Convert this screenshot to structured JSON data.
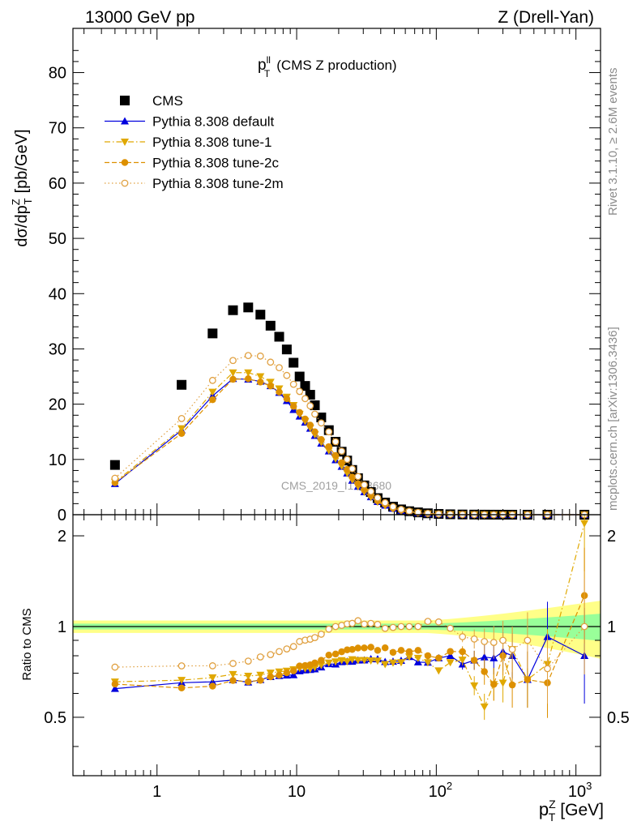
{
  "header": {
    "left": "13000 GeV pp",
    "right": "Z (Drell-Yan)"
  },
  "side_labels": {
    "rivet": "Rivet 3.1.10, ≥ 2.6M events",
    "mcplots": "mcplots.cern.ch [arXiv:1306.3436]"
  },
  "watermark": "CMS_2019_I1753680",
  "chart_data": {
    "type": "scatter",
    "title_main": "p",
    "title_sup": "ll",
    "title_sub": "T",
    "title_rest": "(CMS Z production)",
    "ylabel": {
      "main": "dσ/dp",
      "sup": "Z",
      "sub": "T",
      "unit": "[pb/GeV]"
    },
    "ratio_ylabel": "Ratio to CMS",
    "xlabel": {
      "main": "p",
      "sup": "Z",
      "sub": "T",
      "unit": "[GeV]"
    },
    "x_scale": "log",
    "xlim": [
      0.25,
      1500
    ],
    "ylim": [
      0,
      88
    ],
    "ratio_ylim": [
      0.32,
      2.35
    ],
    "ratio_scale": "log",
    "x_tick_labels": [
      {
        "v": 1,
        "base": "1",
        "exp": ""
      },
      {
        "v": 10,
        "base": "10",
        "exp": ""
      },
      {
        "v": 100,
        "base": "10",
        "exp": "2"
      },
      {
        "v": 1000,
        "base": "10",
        "exp": "3"
      }
    ],
    "y_ticks": [
      0,
      10,
      20,
      30,
      40,
      50,
      60,
      70,
      80
    ],
    "ratio_ticks": [
      {
        "v": 0.5,
        "label": "0.5"
      },
      {
        "v": 1,
        "label": "1"
      },
      {
        "v": 2,
        "label": "2"
      }
    ],
    "legend_position": "top-left",
    "x": [
      0.5,
      1.5,
      2.5,
      3.5,
      4.5,
      5.5,
      6.5,
      7.5,
      8.5,
      9.5,
      10.5,
      11.5,
      12.5,
      13.5,
      15,
      17,
      19,
      21,
      23,
      25,
      27.5,
      30.5,
      34,
      38,
      43,
      49,
      56,
      64,
      74,
      87,
      104,
      126,
      154,
      187,
      221,
      258,
      300,
      350,
      450,
      625,
      1150
    ],
    "series": [
      {
        "name": "CMS",
        "marker": "square-filled",
        "color": "#000000",
        "line": "none",
        "values": [
          9.0,
          23.5,
          32.8,
          37.0,
          37.5,
          36.2,
          34.2,
          32.2,
          29.9,
          27.5,
          25.0,
          23.3,
          21.7,
          19.8,
          17.6,
          15.3,
          13.2,
          11.4,
          9.8,
          8.1,
          6.6,
          5.3,
          4.1,
          3.0,
          2.2,
          1.45,
          0.96,
          0.63,
          0.42,
          0.25,
          0.14,
          0.075,
          0.04,
          0.022,
          0.012,
          0.007,
          0.004,
          0.0025,
          0.0012,
          0.0004,
          6e-05
        ]
      },
      {
        "name": "Pythia 8.308 default",
        "marker": "triangle-up-filled",
        "color": "#0000dd",
        "line": "solid",
        "values": [
          5.6,
          15.3,
          21.5,
          24.6,
          24.5,
          24.1,
          23.3,
          22.1,
          20.6,
          19.0,
          17.8,
          16.7,
          15.6,
          14.3,
          12.9,
          11.5,
          9.9,
          8.7,
          7.5,
          6.2,
          5.1,
          4.1,
          3.2,
          2.34,
          1.68,
          1.11,
          0.74,
          0.5,
          0.32,
          0.19,
          0.11,
          0.06,
          0.03,
          0.017,
          0.0095,
          0.0055,
          0.0033,
          0.002,
          0.0008,
          0.00037,
          4.8e-05
        ]
      },
      {
        "name": "Pythia 8.308 tune-1",
        "marker": "triangle-down-filled",
        "color": "#e0a800",
        "line": "dashdot",
        "values": [
          5.9,
          15.6,
          22.2,
          25.7,
          25.7,
          25.0,
          24.0,
          22.8,
          21.3,
          19.8,
          18.2,
          16.9,
          15.7,
          14.5,
          13.1,
          11.6,
          10.1,
          8.8,
          7.5,
          6.3,
          5.1,
          4.1,
          3.16,
          2.31,
          1.65,
          1.1,
          0.73,
          0.5,
          0.33,
          0.19,
          0.1,
          0.057,
          0.031,
          0.014,
          0.0065,
          0.0045,
          0.0026,
          0.0021,
          0.0008,
          0.0003,
          0.000132
        ]
      },
      {
        "name": "Pythia 8.308 tune-2c",
        "marker": "circle-filled",
        "color": "#dd9000",
        "line": "dashed",
        "values": [
          5.8,
          14.7,
          20.8,
          24.5,
          24.6,
          24.0,
          23.3,
          22.2,
          21.0,
          19.6,
          18.5,
          17.3,
          16.2,
          15.0,
          13.6,
          12.3,
          10.7,
          9.4,
          8.2,
          6.8,
          5.6,
          4.5,
          3.5,
          2.5,
          1.87,
          1.19,
          0.8,
          0.52,
          0.35,
          0.2,
          0.11,
          0.062,
          0.033,
          0.017,
          0.0085,
          0.0045,
          0.0032,
          0.0016,
          0.0008,
          0.00026,
          7.6e-05
        ]
      },
      {
        "name": "Pythia 8.308 tune-2m",
        "marker": "circle-open",
        "color": "#e0a040",
        "line": "dotted",
        "values": [
          6.6,
          17.4,
          24.3,
          27.9,
          28.8,
          28.7,
          27.6,
          26.6,
          25.2,
          23.6,
          22.3,
          21.0,
          19.7,
          18.2,
          16.6,
          15.0,
          13.2,
          11.5,
          10.0,
          8.3,
          6.9,
          5.4,
          4.2,
          3.05,
          2.17,
          1.44,
          0.96,
          0.63,
          0.42,
          0.26,
          0.145,
          0.074,
          0.037,
          0.02,
          0.0107,
          0.0062,
          0.0036,
          0.0021,
          0.00108,
          0.00029,
          6e-05
        ]
      }
    ],
    "ratio_band_colors": {
      "inner": "#99ff99",
      "outer": "#ffff88"
    }
  }
}
